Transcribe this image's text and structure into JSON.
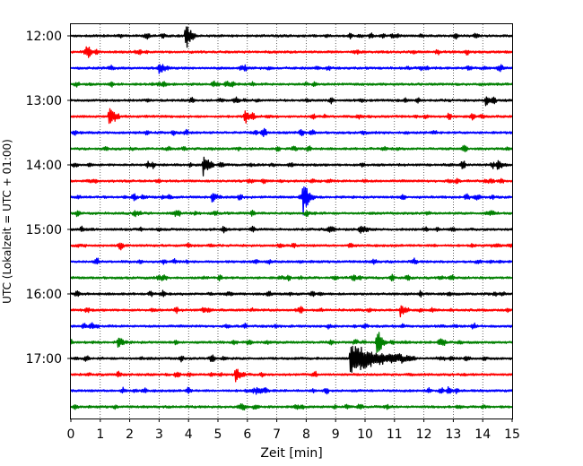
{
  "chart_data": {
    "type": "line",
    "title": "",
    "xlabel": "Zeit  [min]",
    "ylabel": "UTC (Lokalzeit = UTC + 01:00)",
    "xlim": [
      0,
      15
    ],
    "x_ticks": [
      "0",
      "1",
      "2",
      "3",
      "4",
      "5",
      "6",
      "7",
      "8",
      "9",
      "10",
      "11",
      "12",
      "13",
      "14",
      "15"
    ],
    "y_tick_labels": [
      "12:00",
      "13:00",
      "14:00",
      "15:00",
      "16:00",
      "17:00"
    ],
    "grid": "vertical dotted",
    "trace_interval_minutes": 15,
    "colors": [
      "#000000",
      "#ff0000",
      "#0000ff",
      "#008000"
    ],
    "traces": [
      {
        "start": "12:00",
        "color": "#000000",
        "events": [
          {
            "t": 3.9,
            "amp": 1.0
          }
        ]
      },
      {
        "start": "12:15",
        "color": "#ff0000",
        "events": []
      },
      {
        "start": "12:30",
        "color": "#0000ff",
        "events": [
          {
            "t": 3.0,
            "amp": 0.45
          }
        ]
      },
      {
        "start": "12:45",
        "color": "#008000",
        "events": []
      },
      {
        "start": "13:00",
        "color": "#000000",
        "events": [
          {
            "t": 14.1,
            "amp": 0.35
          }
        ]
      },
      {
        "start": "13:15",
        "color": "#ff0000",
        "events": [
          {
            "t": 1.3,
            "amp": 1.0
          },
          {
            "t": 5.9,
            "amp": 0.4
          }
        ]
      },
      {
        "start": "13:30",
        "color": "#0000ff",
        "events": []
      },
      {
        "start": "13:45",
        "color": "#008000",
        "events": []
      },
      {
        "start": "14:00",
        "color": "#000000",
        "events": [
          {
            "t": 4.5,
            "amp": 0.85
          },
          {
            "t": 14.5,
            "amp": 0.35
          }
        ]
      },
      {
        "start": "14:15",
        "color": "#ff0000",
        "events": []
      },
      {
        "start": "14:30",
        "color": "#0000ff",
        "events": [
          {
            "t": 7.9,
            "amp": 1.3
          },
          {
            "t": 4.8,
            "amp": 0.3
          }
        ]
      },
      {
        "start": "14:45",
        "color": "#008000",
        "events": []
      },
      {
        "start": "15:00",
        "color": "#000000",
        "events": []
      },
      {
        "start": "15:15",
        "color": "#ff0000",
        "events": []
      },
      {
        "start": "15:30",
        "color": "#0000ff",
        "events": []
      },
      {
        "start": "15:45",
        "color": "#008000",
        "events": []
      },
      {
        "start": "16:00",
        "color": "#000000",
        "events": []
      },
      {
        "start": "16:15",
        "color": "#ff0000",
        "events": [
          {
            "t": 11.2,
            "amp": 0.4
          }
        ]
      },
      {
        "start": "16:30",
        "color": "#0000ff",
        "events": []
      },
      {
        "start": "16:45",
        "color": "#008000",
        "events": [
          {
            "t": 10.4,
            "amp": 1.0
          },
          {
            "t": 1.6,
            "amp": 0.35
          }
        ]
      },
      {
        "start": "17:00",
        "color": "#000000",
        "events": [
          {
            "t": 9.5,
            "amp": 1.0,
            "coda": 2.2
          }
        ]
      },
      {
        "start": "17:15",
        "color": "#ff0000",
        "events": [
          {
            "t": 5.6,
            "amp": 0.6
          }
        ]
      },
      {
        "start": "17:30",
        "color": "#0000ff",
        "events": [
          {
            "t": 6.3,
            "amp": 0.3
          }
        ]
      },
      {
        "start": "17:45",
        "color": "#008000",
        "events": []
      }
    ]
  }
}
